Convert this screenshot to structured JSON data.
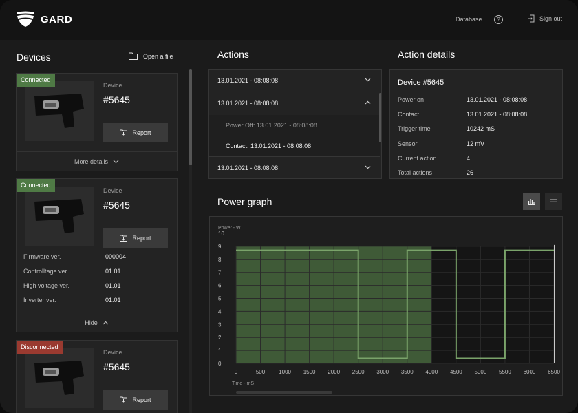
{
  "app": {
    "name": "GARD"
  },
  "topnav": {
    "database": "Database",
    "help": "?",
    "sign_out": "Sign out"
  },
  "devices_panel": {
    "title": "Devices",
    "open_file": "Open a file",
    "cards": [
      {
        "status": "Connected",
        "device_label": "Device",
        "device_number": "#5645",
        "report": "Report",
        "footer": "More details"
      },
      {
        "status": "Connected",
        "device_label": "Device",
        "device_number": "#5645",
        "report": "Report",
        "footer": "Hide",
        "specs": [
          {
            "label": "Firmware ver.",
            "value": "000004"
          },
          {
            "label": "Controlltage ver.",
            "value": "01.01"
          },
          {
            "label": "High voltage ver.",
            "value": "01.01"
          },
          {
            "label": "Inverter ver.",
            "value": "01.01"
          }
        ]
      },
      {
        "status": "Disconnected",
        "device_label": "Device",
        "device_number": "#5645",
        "report": "Report"
      }
    ]
  },
  "actions_panel": {
    "title": "Actions",
    "items": [
      {
        "label": "13.01.2021 - 08:08:08",
        "expanded": false
      },
      {
        "label": "13.01.2021 - 08:08:08",
        "expanded": true,
        "children": [
          "Power Off: 13.01.2021 - 08:08:08",
          "Contact: 13.01.2021 - 08:08:08"
        ]
      },
      {
        "label": "13.01.2021 - 08:08:08",
        "expanded": false
      }
    ]
  },
  "details_panel": {
    "title": "Action details",
    "device": "Device #5645",
    "rows": [
      {
        "label": "Power on",
        "value": "13.01.2021 - 08:08:08"
      },
      {
        "label": "Contact",
        "value": "13.01.2021 - 08:08:08"
      },
      {
        "label": "Trigger time",
        "value": "10242 mS"
      },
      {
        "label": "Sensor",
        "value": "12 mV"
      },
      {
        "label": "Current action",
        "value": "4"
      },
      {
        "label": "Total actions",
        "value": "26"
      }
    ]
  },
  "graph_panel": {
    "title": "Power graph",
    "view_chart": "bar-chart-icon",
    "view_list": "list-icon"
  },
  "chart_data": {
    "type": "line",
    "ylabel": "Power - W",
    "xlabel": "Time - mS",
    "xlim": [
      0,
      6500
    ],
    "ylim": [
      0,
      10
    ],
    "xticks": [
      0,
      500,
      1000,
      1500,
      2000,
      2500,
      3000,
      3500,
      4000,
      4500,
      5000,
      5500,
      6000,
      6500
    ],
    "yticks": [
      0,
      1,
      2,
      3,
      4,
      5,
      6,
      7,
      8,
      9,
      10
    ],
    "series": [
      {
        "x": [
          0,
          2500,
          2500,
          3500,
          3500,
          4500,
          4500,
          5500,
          5500,
          6500
        ],
        "y": [
          8.7,
          8.7,
          0.4,
          0.4,
          8.7,
          8.7,
          0.4,
          0.4,
          8.7,
          8.7
        ]
      }
    ],
    "highlight_range": [
      0,
      4000
    ],
    "cursor_x": 6500,
    "colors": {
      "line": "#7aa36a",
      "highlight": "#3f5a37",
      "grid": "#2b2b2b"
    }
  }
}
